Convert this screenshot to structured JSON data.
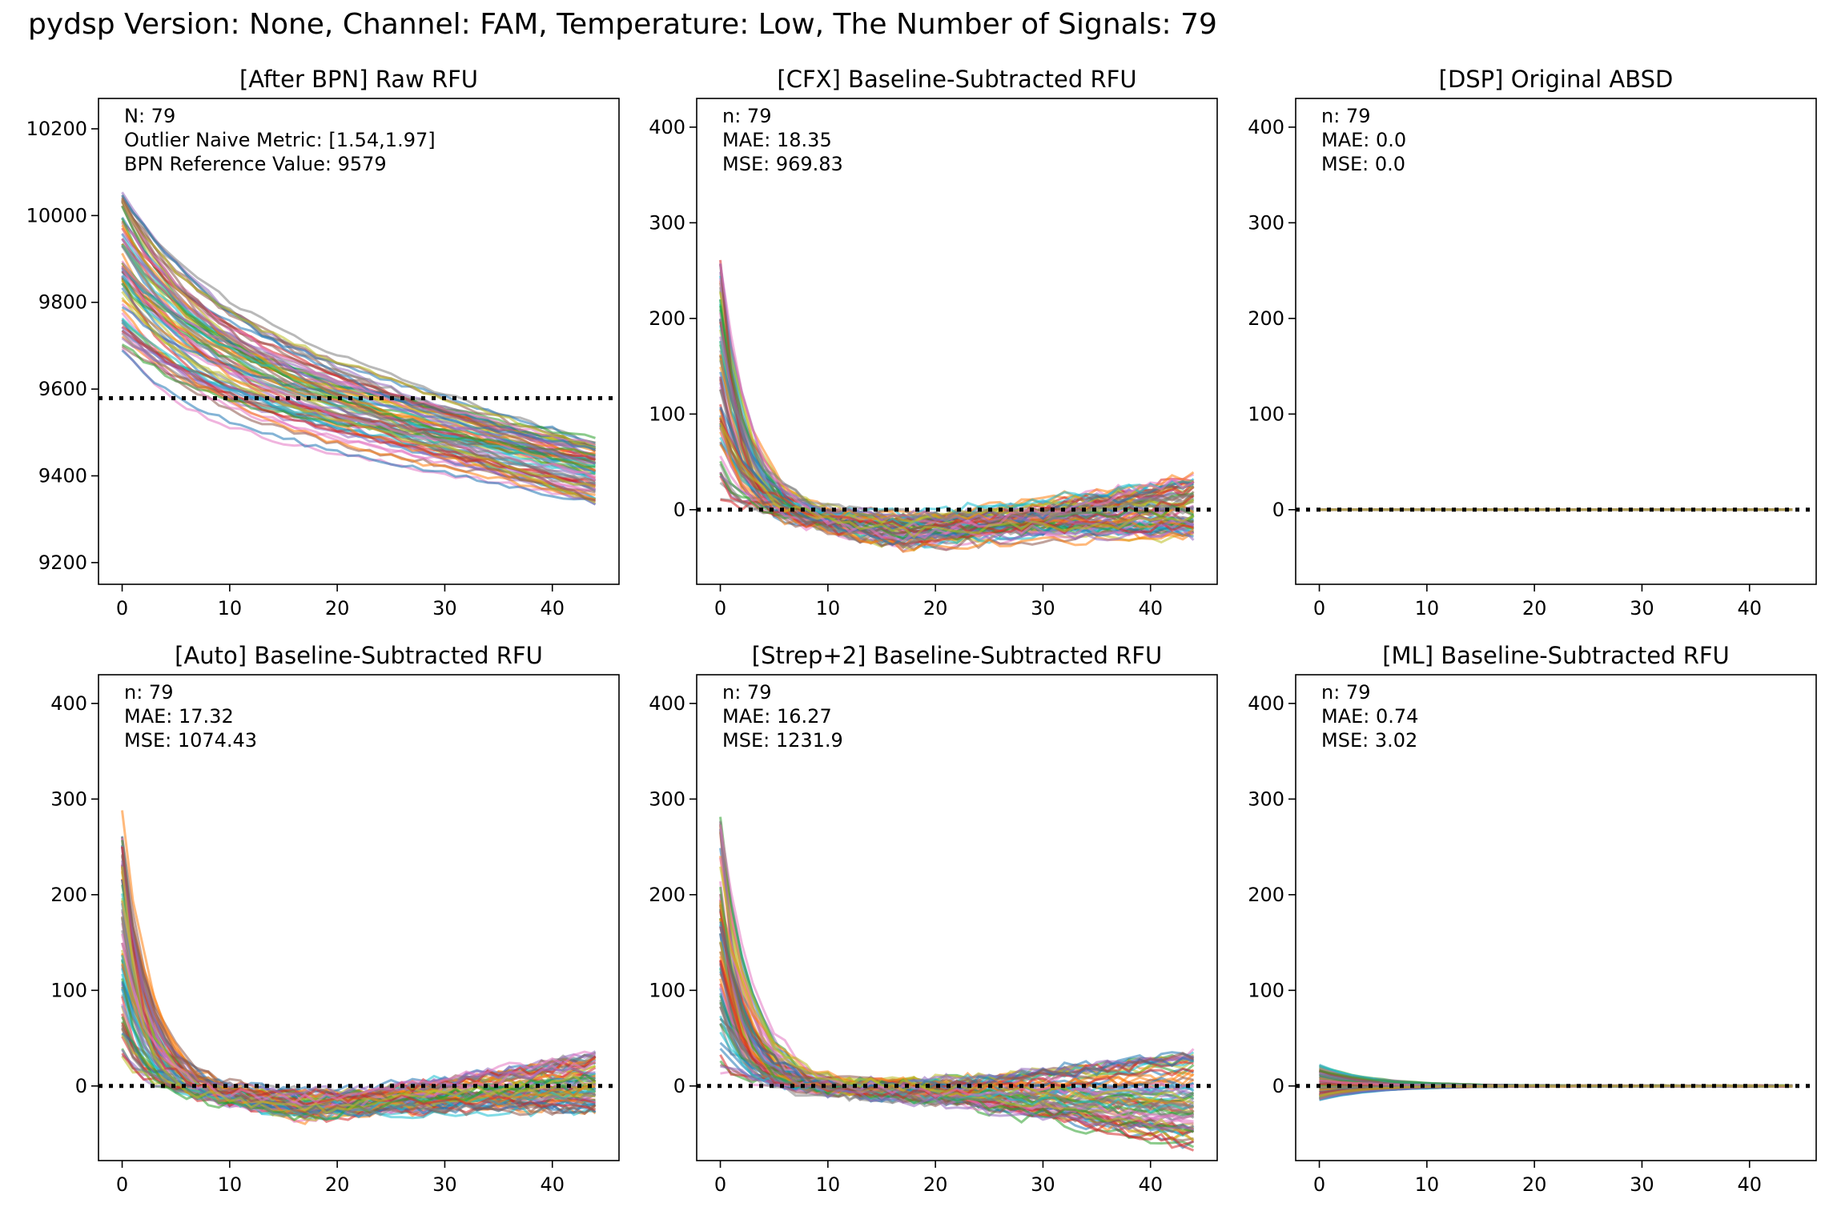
{
  "figure": {
    "suptitle": "pydsp Version: None, Channel: FAM, Temperature: Low, The Number of Signals: 79"
  },
  "palette": [
    "#1f77b4",
    "#ff7f0e",
    "#2ca02c",
    "#d62728",
    "#9467bd",
    "#8c564b",
    "#e377c2",
    "#7f7f7f",
    "#bcbd22",
    "#17becf"
  ],
  "chart_data": [
    {
      "type": "line",
      "title": "[After BPN] Raw RFU",
      "xlim": [
        -2.2,
        46.2
      ],
      "ylim": [
        9150,
        10270
      ],
      "xticks": [
        0,
        10,
        20,
        30,
        40
      ],
      "yticks": [
        9200,
        9400,
        9600,
        9800,
        10000,
        10200
      ],
      "reference_line": 9579,
      "annotation": [
        {
          "label": "N",
          "value": "79"
        },
        {
          "label": "Outlier Naive Metric",
          "value": "[1.54,1.97]"
        },
        {
          "label": "BPN Reference Value",
          "value": "9579"
        }
      ],
      "series_count": 79,
      "cycles": 45,
      "curve_model": "exponential-decay-plus-linear",
      "start_range": [
        9690,
        10060
      ],
      "end_range": [
        9335,
        9485
      ]
    },
    {
      "type": "line",
      "title": "[CFX] Baseline-Subtracted RFU",
      "xlim": [
        -2.2,
        46.2
      ],
      "ylim": [
        -78,
        430
      ],
      "xticks": [
        0,
        10,
        20,
        30,
        40
      ],
      "yticks": [
        0,
        100,
        200,
        300,
        400
      ],
      "reference_line": 0,
      "annotation": [
        {
          "label": "n",
          "value": "79"
        },
        {
          "label": "MAE",
          "value": "18.35"
        },
        {
          "label": "MSE",
          "value": "969.83"
        }
      ],
      "series_count": 79,
      "cycles": 45,
      "peak_range": [
        0,
        235
      ],
      "trough_range": [
        -40,
        -5
      ],
      "end_range": [
        -30,
        35
      ]
    },
    {
      "type": "line",
      "title": "[DSP] Original ABSD",
      "xlim": [
        -2.2,
        46.2
      ],
      "ylim": [
        -78,
        430
      ],
      "xticks": [
        0,
        10,
        20,
        30,
        40
      ],
      "yticks": [
        0,
        100,
        200,
        300,
        400
      ],
      "reference_line": 0,
      "annotation": [
        {
          "label": "n",
          "value": "79"
        },
        {
          "label": "MAE",
          "value": "0.0"
        },
        {
          "label": "MSE",
          "value": "0.0"
        }
      ],
      "series_count": 79,
      "cycles": 45,
      "constant_value": 0
    },
    {
      "type": "line",
      "title": "[Auto] Baseline-Subtracted RFU",
      "xlim": [
        -2.2,
        46.2
      ],
      "ylim": [
        -78,
        430
      ],
      "xticks": [
        0,
        10,
        20,
        30,
        40
      ],
      "yticks": [
        0,
        100,
        200,
        300,
        400
      ],
      "reference_line": 0,
      "annotation": [
        {
          "label": "n",
          "value": "79"
        },
        {
          "label": "MAE",
          "value": "17.32"
        },
        {
          "label": "MSE",
          "value": "1074.43"
        }
      ],
      "series_count": 79,
      "cycles": 45,
      "peak_range": [
        15,
        250
      ],
      "trough_range": [
        -35,
        -5
      ],
      "end_range": [
        -25,
        35
      ]
    },
    {
      "type": "line",
      "title": "[Strep+2] Baseline-Subtracted RFU",
      "xlim": [
        -2.2,
        46.2
      ],
      "ylim": [
        -78,
        430
      ],
      "xticks": [
        0,
        10,
        20,
        30,
        40
      ],
      "yticks": [
        0,
        100,
        200,
        300,
        400
      ],
      "reference_line": 0,
      "annotation": [
        {
          "label": "n",
          "value": "79"
        },
        {
          "label": "MAE",
          "value": "16.27"
        },
        {
          "label": "MSE",
          "value": "1231.9"
        }
      ],
      "series_count": 79,
      "cycles": 45,
      "peak_range": [
        15,
        285
      ],
      "trough_range": [
        -15,
        5
      ],
      "end_range": [
        -65,
        35
      ]
    },
    {
      "type": "line",
      "title": "[ML] Baseline-Subtracted RFU",
      "xlim": [
        -2.2,
        46.2
      ],
      "ylim": [
        -78,
        430
      ],
      "xticks": [
        0,
        10,
        20,
        30,
        40
      ],
      "yticks": [
        0,
        100,
        200,
        300,
        400
      ],
      "reference_line": 0,
      "annotation": [
        {
          "label": "n",
          "value": "79"
        },
        {
          "label": "MAE",
          "value": "0.74"
        },
        {
          "label": "MSE",
          "value": "3.02"
        }
      ],
      "series_count": 79,
      "cycles": 45,
      "peak_range": [
        -15,
        22
      ],
      "end_range": [
        -1,
        1
      ]
    }
  ]
}
